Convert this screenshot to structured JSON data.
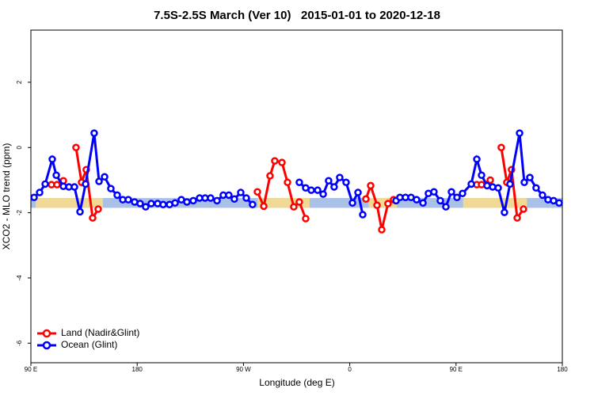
{
  "chart_data": {
    "type": "line",
    "title": "7.5S-2.5S March (Ver 10)   2015-01-01 to 2020-12-18",
    "x_label": "Longitude (deg E)",
    "y_label": "XCO2 - MLO trend (ppm)",
    "xlim": [
      90,
      540
    ],
    "ylim": [
      -6.6,
      3.6
    ],
    "xticks": [
      {
        "value": 90,
        "label": "90 E"
      },
      {
        "value": 180,
        "label": "180"
      },
      {
        "value": 270,
        "label": "90 W"
      },
      {
        "value": 360,
        "label": "0"
      },
      {
        "value": 450,
        "label": "90 E"
      },
      {
        "value": 540,
        "label": "180"
      }
    ],
    "yticks": [
      -6,
      -4,
      -2,
      0,
      2
    ],
    "legend": "bottomleft",
    "band": {
      "ylim": [
        -1.85,
        -1.55
      ],
      "color": "#a9c1e6"
    },
    "land_spans": {
      "color": "#f7dc8c",
      "x": [
        [
          94,
          151
        ],
        [
          282,
          326
        ],
        [
          376,
          400
        ],
        [
          456,
          510
        ]
      ]
    },
    "series": [
      {
        "name": "Land (Nadir&Glint)",
        "color": "#ff0000",
        "x": [
          107.4,
          112.1,
          117.5,
          null,
          128.2,
          132.9,
          136.9,
          142.3,
          147.0,
          null,
          281.8,
          287.2,
          292.5,
          296.5,
          302.6,
          307.3,
          312.6,
          317.3,
          322.7,
          null,
          373.7,
          377.7,
          383.1,
          387.1,
          392.4,
          397.1,
          null,
          467.6,
          471.6,
          479.0,
          null,
          488.3,
          493.0,
          497.0,
          501.8,
          507.1
        ],
        "values": [
          -1.14,
          -1.14,
          -1.02,
          null,
          0.0,
          -1.07,
          -0.68,
          -2.16,
          -1.89,
          null,
          -1.36,
          -1.8,
          -0.87,
          -0.41,
          -0.46,
          -1.07,
          -1.82,
          -1.67,
          -2.18,
          null,
          -1.58,
          -1.17,
          -1.77,
          -2.52,
          -1.72,
          -1.6,
          null,
          -1.14,
          -1.14,
          -1.0,
          null,
          0.0,
          -1.07,
          -0.68,
          -2.16,
          -1.89
        ]
      },
      {
        "name": "Ocean (Glint)",
        "color": "#0000ff",
        "x": [
          92.7,
          97.4,
          102.1,
          108.1,
          111.5,
          117.5,
          122.2,
          126.9,
          131.6,
          136.3,
          143.6,
          147.7,
          152.4,
          157.7,
          163.1,
          167.8,
          172.5,
          177.8,
          182.5,
          187.2,
          191.9,
          197.3,
          202.0,
          207.4,
          212.1,
          217.4,
          222.1,
          227.5,
          232.8,
          237.5,
          242.2,
          247.6,
          252.9,
          257.6,
          262.3,
          267.7,
          272.4,
          277.7,
          null,
          317.3,
          322.7,
          327.4,
          332.8,
          337.5,
          342.1,
          346.8,
          351.5,
          356.9,
          362.3,
          367.0,
          371.0,
          null,
          399.2,
          402.5,
          407.2,
          411.9,
          416.6,
          422.0,
          426.6,
          431.3,
          436.7,
          441.4,
          446.1,
          450.8,
          455.5,
          462.9,
          467.6,
          471.6,
          476.3,
          481.0,
          485.7,
          491.0,
          495.7,
          503.8,
          507.8,
          512.5,
          517.8,
          523.2,
          527.9,
          532.6,
          537.3
        ],
        "values": [
          -1.53,
          -1.38,
          -1.12,
          -0.36,
          -0.85,
          -1.19,
          -1.21,
          -1.21,
          -1.97,
          -1.12,
          0.44,
          -1.04,
          -0.9,
          -1.26,
          -1.46,
          -1.6,
          -1.6,
          -1.67,
          -1.72,
          -1.82,
          -1.72,
          -1.72,
          -1.75,
          -1.75,
          -1.7,
          -1.6,
          -1.67,
          -1.63,
          -1.55,
          -1.55,
          -1.55,
          -1.63,
          -1.46,
          -1.46,
          -1.58,
          -1.38,
          -1.55,
          -1.75,
          null,
          -1.07,
          -1.24,
          -1.31,
          -1.31,
          -1.43,
          -1.02,
          -1.21,
          -0.92,
          -1.07,
          -1.7,
          -1.38,
          -2.06,
          null,
          -1.63,
          -1.53,
          -1.53,
          -1.53,
          -1.6,
          -1.7,
          -1.41,
          -1.36,
          -1.63,
          -1.82,
          -1.36,
          -1.53,
          -1.41,
          -1.12,
          -0.36,
          -0.85,
          -1.17,
          -1.21,
          -1.24,
          -1.99,
          -1.12,
          0.44,
          -1.07,
          -0.92,
          -1.24,
          -1.46,
          -1.6,
          -1.63,
          -1.7
        ]
      }
    ]
  }
}
